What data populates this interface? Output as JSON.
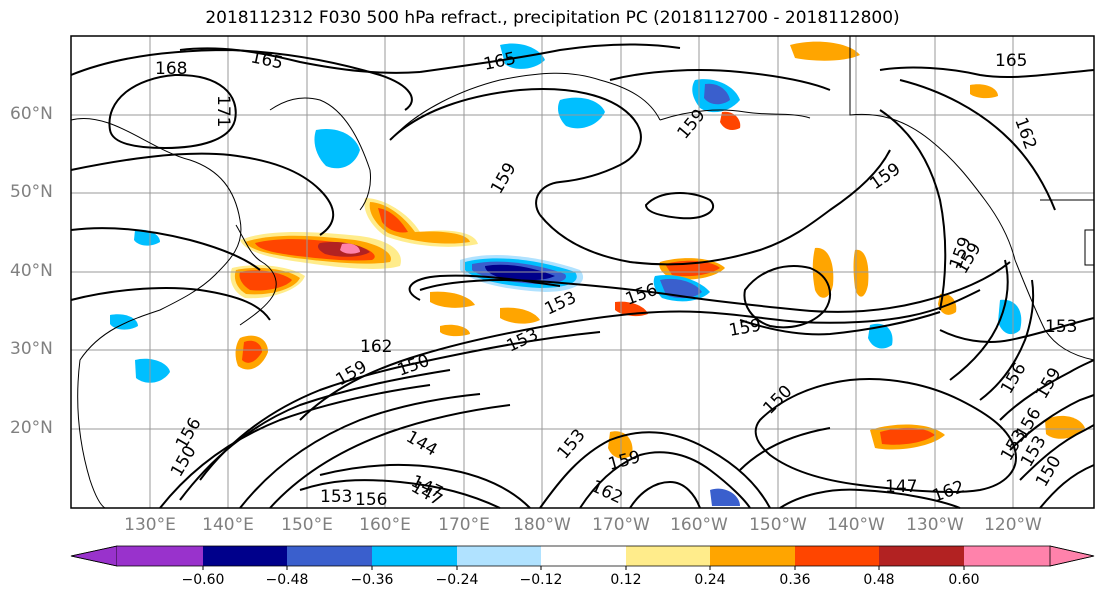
{
  "title": "2018112312 F030 500 hPa refract., precipitation PC (2018112700 - 2018112800)",
  "lat_labels": [
    "60°N",
    "50°N",
    "40°N",
    "30°N",
    "20°N"
  ],
  "lon_labels": [
    "130°E",
    "140°E",
    "150°E",
    "160°E",
    "170°E",
    "180°W",
    "170°W",
    "160°W",
    "150°W",
    "140°W",
    "130°W",
    "120°W"
  ],
  "contour_labels": [
    "168",
    "165",
    "165",
    "171",
    "165",
    "162",
    "159",
    "159",
    "159",
    "159",
    "156",
    "153",
    "159",
    "150",
    "162",
    "159",
    "153",
    "150",
    "144",
    "147",
    "153",
    "156",
    "147",
    "150",
    "156",
    "159",
    "153",
    "147",
    "162",
    "159",
    "156",
    "153",
    "159",
    "162",
    "153",
    "150",
    "156",
    "153"
  ],
  "colorbar": {
    "ticks": [
      "−0.60",
      "−0.48",
      "−0.36",
      "−0.24",
      "−0.12",
      "0.12",
      "0.24",
      "0.36",
      "0.48",
      "0.60"
    ],
    "colors": [
      "#9932cc",
      "#00008b",
      "#3a5fcd",
      "#00bfff",
      "#b0e2ff",
      "#ffffff",
      "#ffec8b",
      "#ffa500",
      "#ff4500",
      "#b22222",
      "#ff82ab"
    ]
  }
}
